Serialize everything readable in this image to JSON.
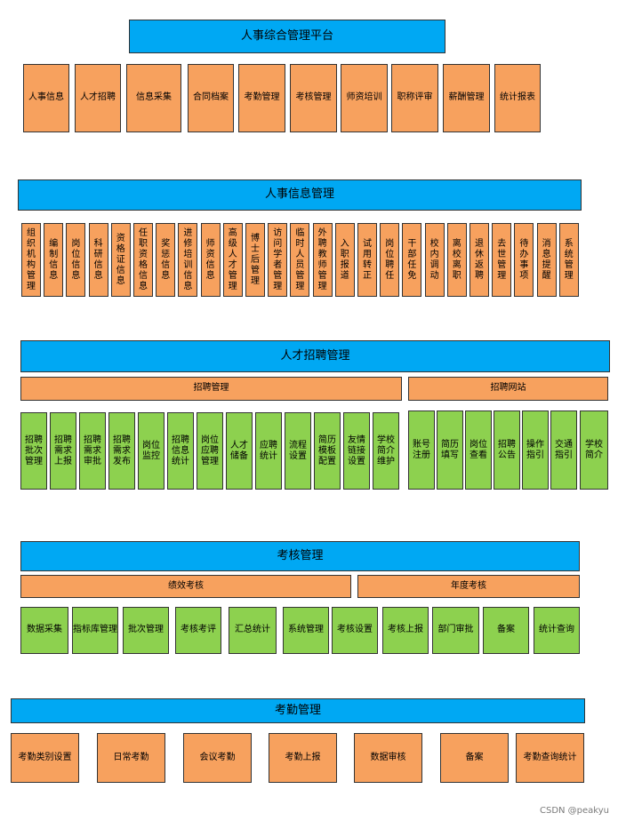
{
  "s1": {
    "title": "人事综合管理平台",
    "items": [
      "人事信息",
      "人才招聘",
      "信息采集",
      "合同档案",
      "考勤管理",
      "考核管理",
      "师资培训",
      "职称评审",
      "薪酬管理",
      "统计报表"
    ]
  },
  "s2": {
    "title": "人事信息管理",
    "items": [
      "组织机构管理",
      "编制信息",
      "岗位信息",
      "科研信息",
      "资格证信息",
      "任职资格信息",
      "奖惩信息",
      "进修培训信息",
      "师资信息",
      "高级人才管理",
      "博士后管理",
      "访问学者管理",
      "临时人员管理",
      "外聘教师管理",
      "入职报道",
      "试用转正",
      "岗位聘任",
      "干部任免",
      "校内调动",
      "离校离职",
      "退休返聘",
      "去世管理",
      "待办事项",
      "消息提醒",
      "系统管理"
    ]
  },
  "s3": {
    "title": "人才招聘管理",
    "left_bar": "招聘管理",
    "right_bar": "招聘网站",
    "left_items": [
      "招聘批次管理",
      "招聘需求上报",
      "招聘需求审批",
      "招聘需求发布",
      "岗位监控",
      "招聘信息统计",
      "岗位应聘管理",
      "人才储备",
      "应聘统计",
      "流程设置",
      "简历模板配置",
      "友情链接设置",
      "学校简介维护"
    ],
    "right_items": [
      "账号注册",
      "简历填写",
      "岗位查看",
      "招聘公告",
      "操作指引",
      "交通指引",
      "学校简介"
    ]
  },
  "s4": {
    "title": "考核管理",
    "left_bar": "绩效考核",
    "right_bar": "年度考核",
    "items": [
      "数据采集",
      "指标库管理",
      "批次管理",
      "考核考评",
      "汇总统计",
      "系统管理",
      "考核设置",
      "考核上报",
      "部门审批",
      "备案",
      "统计查询"
    ]
  },
  "s5": {
    "title": "考勤管理",
    "items": [
      "考勤类别设置",
      "日常考勤",
      "会议考勤",
      "考勤上报",
      "数据审核",
      "备案",
      "考勤查询统计"
    ]
  },
  "watermark": "CSDN @peakyu"
}
